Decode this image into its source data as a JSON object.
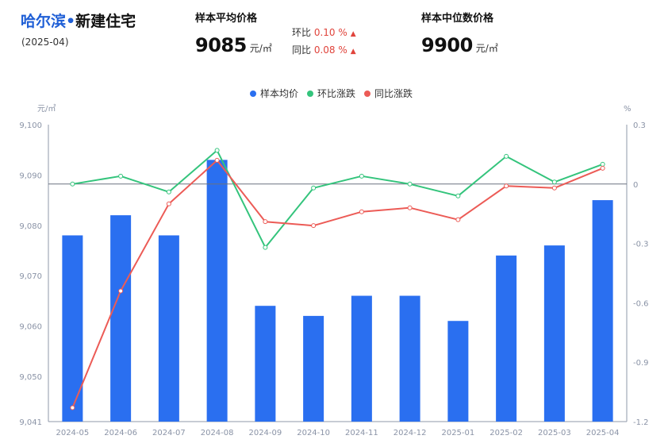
{
  "header": {
    "city": "哈尔滨",
    "separator": "•",
    "category": "新建住宅",
    "period": "(2025-04)"
  },
  "avg_price": {
    "title": "样本平均价格",
    "value": "9085",
    "unit": "元/㎡",
    "mom_label": "环比",
    "mom_value": "0.10 %",
    "yoy_label": "同比",
    "yoy_value": "0.08 %",
    "trend_icon": "up-triangle-icon"
  },
  "median_price": {
    "title": "样本中位数价格",
    "value": "9900",
    "unit": "元/㎡"
  },
  "colors": {
    "bar": "#2a6ff0",
    "mom_line": "#34c47c",
    "yoy_line": "#ec5b56",
    "accent_red": "#e0443c",
    "brand_blue": "#1f5fd6"
  },
  "chart_data": {
    "type": "bar",
    "categories": [
      "2024-05",
      "2024-06",
      "2024-07",
      "2024-08",
      "2024-09",
      "2024-10",
      "2024-11",
      "2024-12",
      "2025-01",
      "2025-02",
      "2025-03",
      "2025-04"
    ],
    "series": [
      {
        "name": "样本均价",
        "type": "bar",
        "axis": "left",
        "values": [
          9078,
          9082,
          9078,
          9093,
          9064,
          9062,
          9066,
          9066,
          9061,
          9074,
          9076,
          9085
        ]
      },
      {
        "name": "环比涨跌",
        "type": "line",
        "axis": "right",
        "values": [
          0.0,
          0.04,
          -0.04,
          0.17,
          -0.32,
          -0.02,
          0.04,
          0.0,
          -0.06,
          0.14,
          0.01,
          0.1
        ]
      },
      {
        "name": "同比涨跌",
        "type": "line",
        "axis": "right",
        "values": [
          -1.13,
          -0.54,
          -0.1,
          0.12,
          -0.19,
          -0.21,
          -0.14,
          -0.12,
          -0.18,
          -0.01,
          -0.02,
          0.08
        ]
      }
    ],
    "y_left": {
      "unit": "元/㎡",
      "ylim": [
        9041,
        9100
      ],
      "ticks": [
        "9,041",
        "9,050",
        "9,060",
        "9,070",
        "9,080",
        "9,090",
        "9,100"
      ],
      "tick_values": [
        9041,
        9050,
        9060,
        9070,
        9080,
        9090,
        9100
      ]
    },
    "y_right": {
      "unit": "%",
      "ylim": [
        -1.2,
        0.3
      ],
      "ticks": [
        "-1.2",
        "-0.9",
        "-0.6",
        "-0.3",
        "0",
        "0.3"
      ],
      "tick_values": [
        -1.2,
        -0.9,
        -0.6,
        -0.3,
        0,
        0.3
      ]
    },
    "legend_position": "top-center",
    "grid": false
  }
}
